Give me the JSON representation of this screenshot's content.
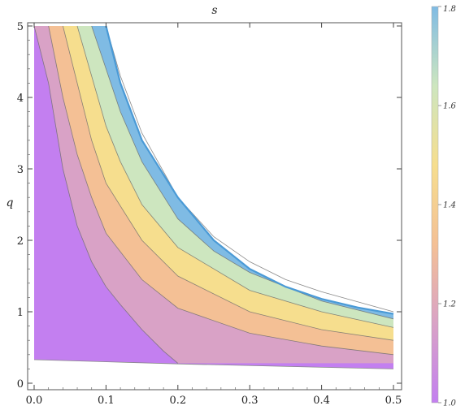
{
  "chart_data": {
    "type": "heatmap",
    "title": "s",
    "xlabel": "",
    "ylabel": "q",
    "xlim": [
      0.0,
      0.5
    ],
    "ylim": [
      0.0,
      5.0
    ],
    "xticks": [
      "0.0",
      "0.1",
      "0.2",
      "0.3",
      "0.4",
      "0.5"
    ],
    "yticks": [
      "0",
      "1",
      "2",
      "3",
      "4",
      "5"
    ],
    "grid": false,
    "colorbar": {
      "range": [
        1.0,
        1.8
      ],
      "ticks": [
        "1.0",
        "1.2",
        "1.4",
        "1.6",
        "1.8"
      ],
      "colors": [
        "#c37ff0",
        "#d9a2c6",
        "#f4c095",
        "#f6de8e",
        "#cde6bf",
        "#7fbbe4"
      ]
    },
    "region_boundary": {
      "left_x": 0.0,
      "lower_edge": [
        [
          0.0,
          0.33
        ],
        [
          0.2,
          0.27
        ],
        [
          0.5,
          0.2
        ]
      ],
      "upper_edge": [
        [
          0.1,
          5.0
        ],
        [
          0.12,
          4.2
        ],
        [
          0.15,
          3.4
        ],
        [
          0.2,
          2.6
        ],
        [
          0.25,
          2.0
        ],
        [
          0.3,
          1.6
        ],
        [
          0.35,
          1.35
        ],
        [
          0.4,
          1.18
        ],
        [
          0.45,
          1.06
        ],
        [
          0.5,
          0.97
        ]
      ]
    },
    "contours": [
      {
        "level": 1.1,
        "x": [
          0.0,
          0.02,
          0.04,
          0.06,
          0.08,
          0.1,
          0.12,
          0.15,
          0.18,
          0.2
        ],
        "y": [
          5.0,
          4.2,
          3.0,
          2.2,
          1.7,
          1.35,
          1.1,
          0.75,
          0.45,
          0.28
        ]
      },
      {
        "level": 1.2,
        "x": [
          0.02,
          0.04,
          0.06,
          0.08,
          0.1,
          0.15,
          0.2,
          0.3,
          0.4,
          0.5
        ],
        "y": [
          5.0,
          4.0,
          3.2,
          2.6,
          2.1,
          1.45,
          1.05,
          0.7,
          0.52,
          0.4
        ]
      },
      {
        "level": 1.3,
        "x": [
          0.04,
          0.06,
          0.08,
          0.1,
          0.15,
          0.2,
          0.3,
          0.4,
          0.5
        ],
        "y": [
          5.0,
          4.2,
          3.4,
          2.8,
          2.0,
          1.5,
          1.0,
          0.75,
          0.6
        ]
      },
      {
        "level": 1.4,
        "x": [
          0.06,
          0.08,
          0.1,
          0.12,
          0.15,
          0.2,
          0.3,
          0.4,
          0.5
        ],
        "y": [
          5.0,
          4.3,
          3.6,
          3.1,
          2.5,
          1.9,
          1.3,
          1.0,
          0.78
        ]
      },
      {
        "level": 1.5,
        "x": [
          0.08,
          0.1,
          0.12,
          0.15,
          0.2,
          0.25,
          0.3,
          0.4,
          0.5
        ],
        "y": [
          5.0,
          4.4,
          3.8,
          3.1,
          2.3,
          1.85,
          1.55,
          1.15,
          0.9
        ]
      },
      {
        "level": 1.6,
        "x": [
          0.1,
          0.12,
          0.15,
          0.2,
          0.25,
          0.3,
          0.35,
          0.4,
          0.5
        ],
        "y": [
          5.0,
          4.3,
          3.5,
          2.6,
          2.05,
          1.7,
          1.45,
          1.28,
          1.0
        ]
      }
    ]
  }
}
